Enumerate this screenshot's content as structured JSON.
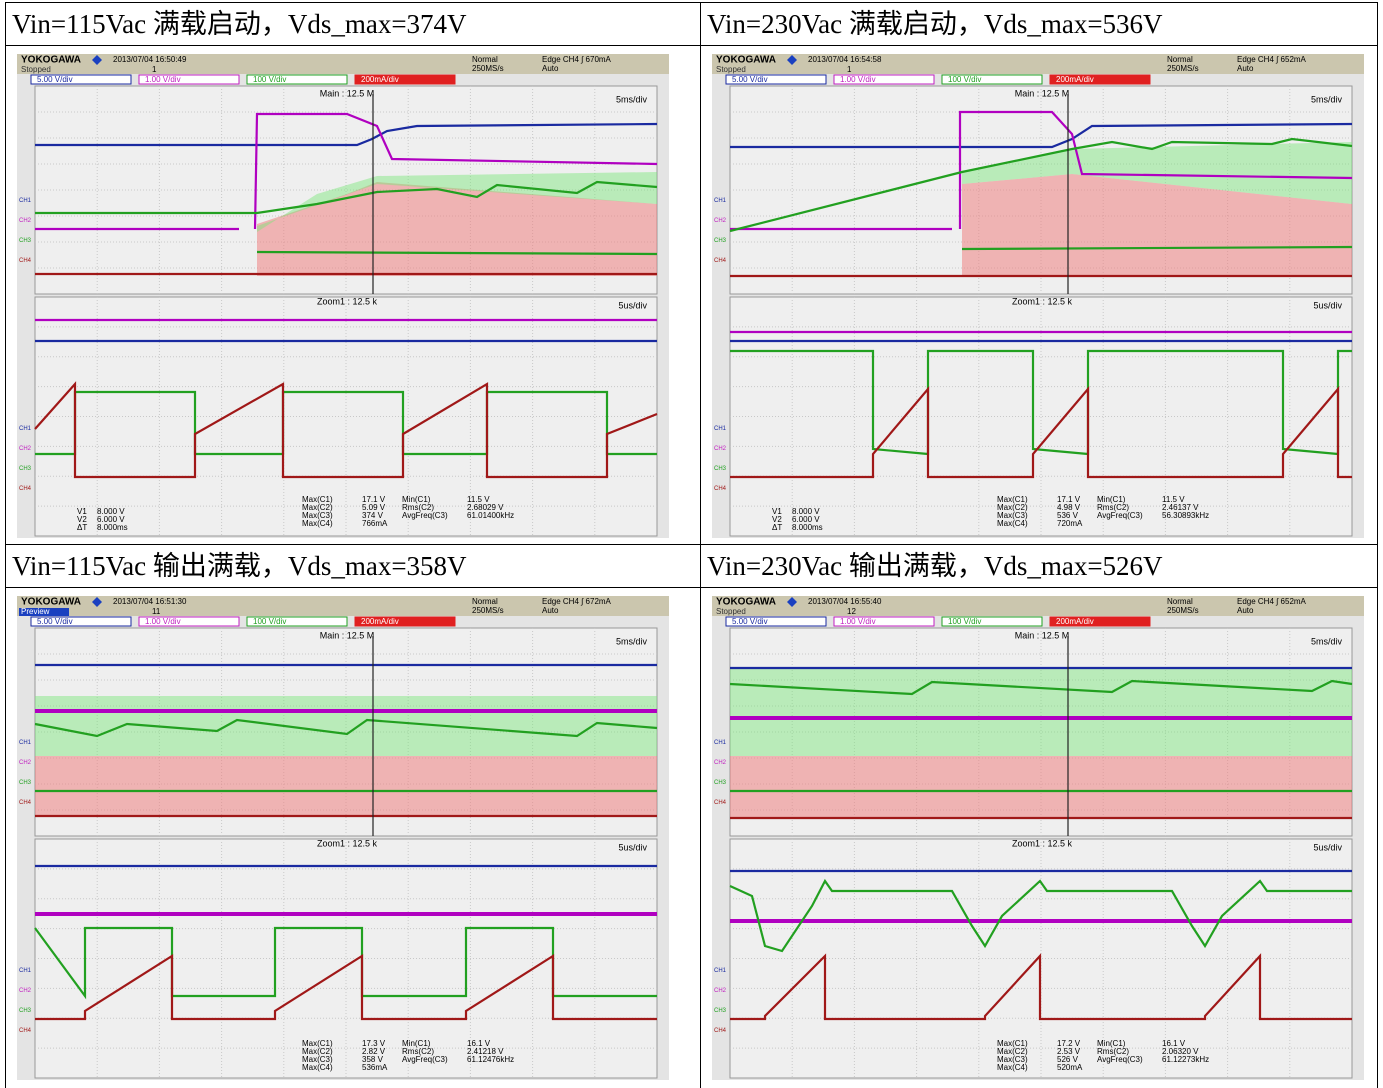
{
  "cells": [
    {
      "caption": "Vin=115Vac 满载启动，Vds_max=374V",
      "scope": {
        "brand": "YOKOGAWA",
        "timestamp": "2013/07/04 16:50:49",
        "status": "Stopped",
        "count": "1",
        "mode": "Normal",
        "rate": "250MS/s",
        "trigger": "Edge CH4 ∫ 670mA",
        "trigger_mode": "Auto",
        "channels": [
          "5.00 V/div",
          "1.00 V/div",
          "100 V/div",
          "200mA/div"
        ],
        "main": "Main : 12.5 M",
        "main_div": "5ms/div",
        "zoom": "Zoom1 : 12.5 k",
        "zoom_div": "5us/div",
        "channel_labels": [
          "CH1",
          "CH2",
          "CH3",
          "CH4"
        ],
        "cursors": [
          [
            "V1",
            "8.000 V"
          ],
          [
            "V2",
            "6.000 V"
          ],
          [
            "ΔT",
            "8.000ms"
          ]
        ],
        "measures": [
          [
            "Max(C1)",
            "17.1 V"
          ],
          [
            "Max(C2)",
            "5.09 V"
          ],
          [
            "Max(C3)",
            "374 V"
          ],
          [
            "Max(C4)",
            "766mA"
          ]
        ],
        "measures2": [
          [
            "Min(C1)",
            "11.5 V"
          ],
          [
            "Rms(C2)",
            "2.68029 V"
          ],
          [
            "AvgFreq(C3)",
            "61.01400kHz"
          ]
        ]
      }
    },
    {
      "caption": "Vin=230Vac 满载启动，Vds_max=536V",
      "scope": {
        "brand": "YOKOGAWA",
        "timestamp": "2013/07/04 16:54:58",
        "status": "Stopped",
        "count": "1",
        "mode": "Normal",
        "rate": "250MS/s",
        "trigger": "Edge CH4 ∫ 652mA",
        "trigger_mode": "Auto",
        "channels": [
          "5.00 V/div",
          "1.00 V/div",
          "100 V/div",
          "200mA/div"
        ],
        "main": "Main : 12.5 M",
        "main_div": "5ms/div",
        "zoom": "Zoom1 : 12.5 k",
        "zoom_div": "5us/div",
        "channel_labels": [
          "CH1",
          "CH2",
          "CH3",
          "CH4"
        ],
        "cursors": [
          [
            "V1",
            "8.000 V"
          ],
          [
            "V2",
            "6.000 V"
          ],
          [
            "ΔT",
            "8.000ms"
          ]
        ],
        "measures": [
          [
            "Max(C1)",
            "17.1 V"
          ],
          [
            "Max(C2)",
            "4.98 V"
          ],
          [
            "Max(C3)",
            "536 V"
          ],
          [
            "Max(C4)",
            "720mA"
          ]
        ],
        "measures2": [
          [
            "Min(C1)",
            "11.5 V"
          ],
          [
            "Rms(C2)",
            "2.46137 V"
          ],
          [
            "AvgFreq(C3)",
            "56.30893kHz"
          ]
        ]
      }
    },
    {
      "caption": "Vin=115Vac 输出满载，Vds_max=358V",
      "scope": {
        "brand": "YOKOGAWA",
        "timestamp": "2013/07/04 16:51:30",
        "status": "Preview",
        "count": "11",
        "mode": "Normal",
        "rate": "250MS/s",
        "trigger": "Edge CH4 ∫ 672mA",
        "trigger_mode": "Auto",
        "channels": [
          "5.00 V/div",
          "1.00 V/div",
          "100 V/div",
          "200mA/div"
        ],
        "main": "Main : 12.5 M",
        "main_div": "5ms/div",
        "zoom": "Zoom1 : 12.5 k",
        "zoom_div": "5us/div",
        "channel_labels": [
          "CH1",
          "CH2",
          "CH3",
          "CH4"
        ],
        "measures": [
          [
            "Max(C1)",
            "17.3 V"
          ],
          [
            "Max(C2)",
            "2.82 V"
          ],
          [
            "Max(C3)",
            "358 V"
          ],
          [
            "Max(C4)",
            "536mA"
          ]
        ],
        "measures2": [
          [
            "Min(C1)",
            "16.1 V"
          ],
          [
            "Rms(C2)",
            "2.41218 V"
          ],
          [
            "AvgFreq(C3)",
            "61.12476kHz"
          ]
        ]
      }
    },
    {
      "caption": "Vin=230Vac 输出满载，Vds_max=526V",
      "scope": {
        "brand": "YOKOGAWA",
        "timestamp": "2013/07/04 16:55:40",
        "status": "Stopped",
        "count": "12",
        "mode": "Normal",
        "rate": "250MS/s",
        "trigger": "Edge CH4 ∫ 652mA",
        "trigger_mode": "Auto",
        "channels": [
          "5.00 V/div",
          "1.00 V/div",
          "100 V/div",
          "200mA/div"
        ],
        "main": "Main : 12.5 M",
        "main_div": "5ms/div",
        "zoom": "Zoom1 : 12.5 k",
        "zoom_div": "5us/div",
        "channel_labels": [
          "CH1",
          "CH2",
          "CH3",
          "CH4"
        ],
        "measures": [
          [
            "Max(C1)",
            "17.2 V"
          ],
          [
            "Max(C2)",
            "2.53 V"
          ],
          [
            "Max(C3)",
            "526 V"
          ],
          [
            "Max(C4)",
            "520mA"
          ]
        ],
        "measures2": [
          [
            "Min(C1)",
            "16.1 V"
          ],
          [
            "Rms(C2)",
            "2.06320 V"
          ],
          [
            "AvgFreq(C3)",
            "61.12273kHz"
          ]
        ]
      }
    }
  ]
}
